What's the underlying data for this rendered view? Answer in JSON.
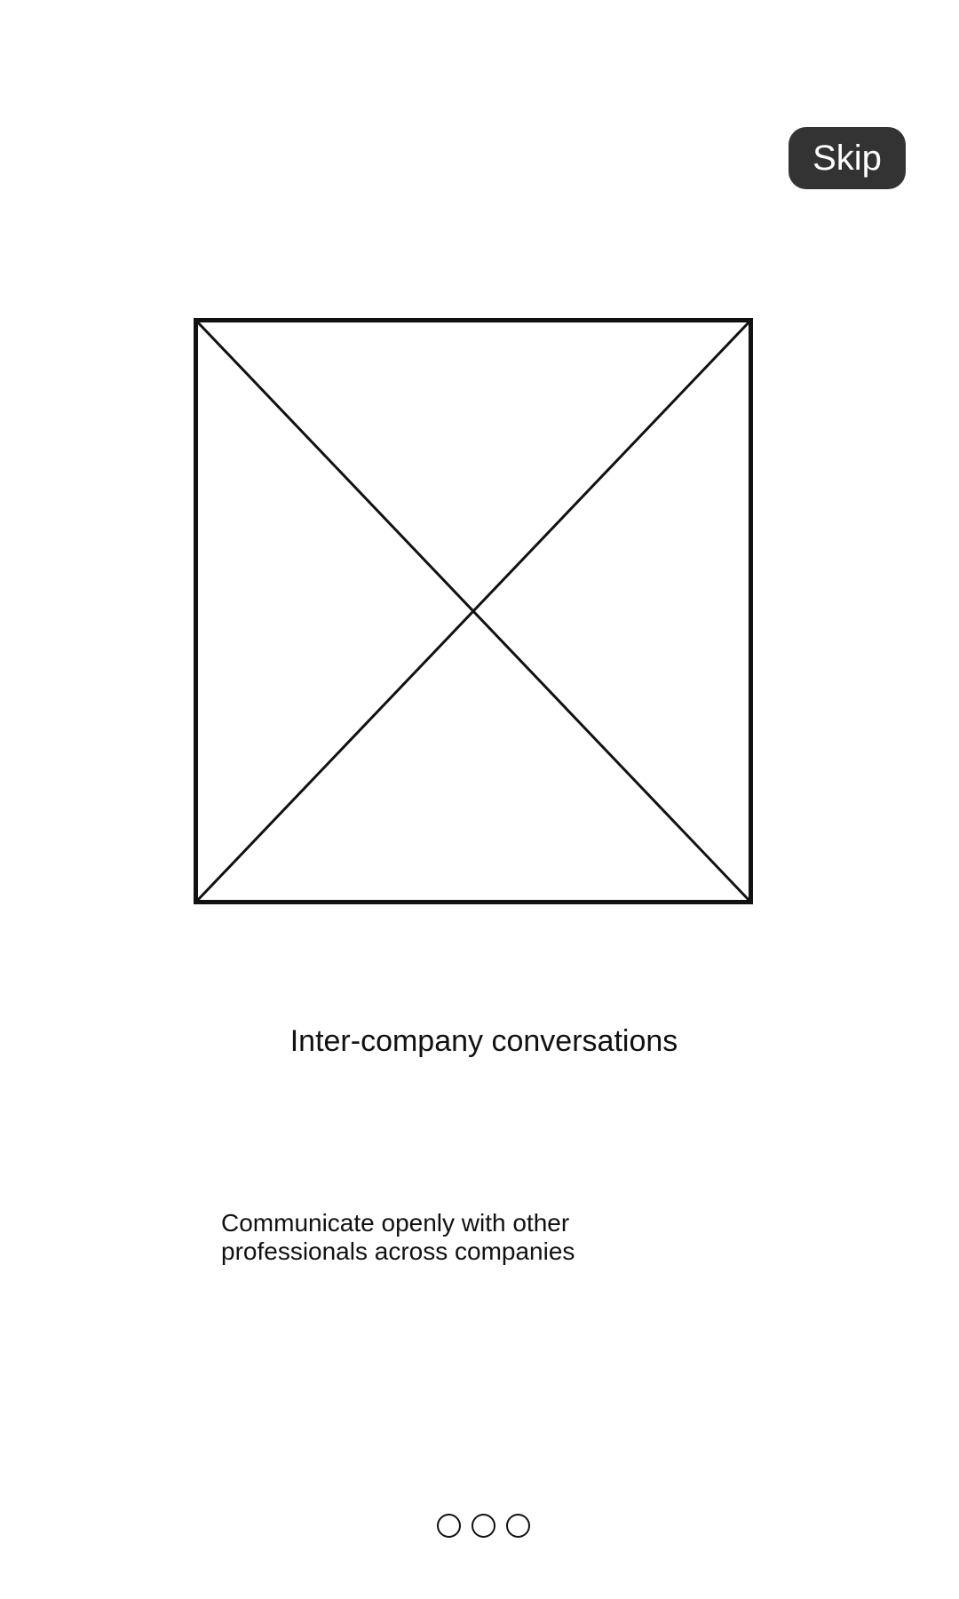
{
  "header": {
    "skip_label": "Skip"
  },
  "hero": {
    "image": "image-placeholder-icon"
  },
  "onboarding": {
    "title": "Inter-company conversations",
    "description_line1": "Communicate openly with other",
    "description_line2": "professionals across companies"
  },
  "pager": {
    "total_pages": 3
  },
  "colors": {
    "skip_background": "#333333",
    "skip_text": "#ffffff",
    "text": "#111111",
    "background": "#ffffff"
  }
}
